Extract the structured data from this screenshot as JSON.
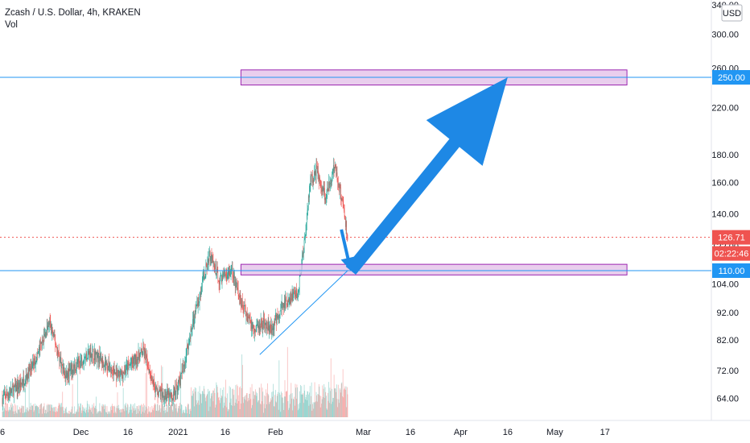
{
  "legend": {
    "title": "Zcash / U.S. Dollar, 4h, KRAKEN",
    "volume_label": "Vol"
  },
  "currency_label": "USD",
  "countdown": "02:22:46",
  "colors": {
    "up": "#26a69a",
    "down": "#ef5350",
    "zone_fill": "#e1bee7",
    "zone_stroke": "#9c27b0",
    "level_line": "#2196f3",
    "arrow": "#1e88e5",
    "price_line": "#ef5350"
  },
  "chart_data": {
    "type": "candlestick",
    "symbol": "ZECUSD",
    "timeframe": "4h",
    "exchange": "KRAKEN",
    "y_scale": "log",
    "ylim": [
      56,
      345
    ],
    "y_ticks": [
      340,
      300,
      260,
      220,
      180,
      160,
      140,
      122,
      104,
      92,
      82,
      72,
      64
    ],
    "y_tick_labels": [
      "340.00",
      "300.00",
      "260.00",
      "220.00",
      "180.00",
      "160.00",
      "140.00",
      "122.00",
      "104.00",
      "92.00",
      "82.00",
      "72.00",
      "64.00"
    ],
    "x_ticks": [
      {
        "label": "6",
        "date": "2020-11-06"
      },
      {
        "label": "Dec",
        "date": "2020-12-01"
      },
      {
        "label": "16",
        "date": "2020-12-16"
      },
      {
        "label": "2021",
        "date": "2021-01-01"
      },
      {
        "label": "16",
        "date": "2021-01-16"
      },
      {
        "label": "Feb",
        "date": "2021-02-01"
      },
      {
        "label": "Mar",
        "date": "2021-03-01"
      },
      {
        "label": "16",
        "date": "2021-03-16"
      },
      {
        "label": "Apr",
        "date": "2021-04-01"
      },
      {
        "label": "16",
        "date": "2021-04-16"
      },
      {
        "label": "May",
        "date": "2021-05-01"
      },
      {
        "label": "17",
        "date": "2021-05-17"
      }
    ],
    "price_keypoints": [
      {
        "date": "2020-11-06",
        "close": 64
      },
      {
        "date": "2020-11-12",
        "close": 68
      },
      {
        "date": "2020-11-16",
        "close": 74
      },
      {
        "date": "2020-11-21",
        "close": 88
      },
      {
        "date": "2020-11-26",
        "close": 70
      },
      {
        "date": "2020-11-30",
        "close": 74
      },
      {
        "date": "2020-12-04",
        "close": 78
      },
      {
        "date": "2020-12-08",
        "close": 75
      },
      {
        "date": "2020-12-13",
        "close": 70
      },
      {
        "date": "2020-12-17",
        "close": 74
      },
      {
        "date": "2020-12-21",
        "close": 78
      },
      {
        "date": "2020-12-25",
        "close": 66
      },
      {
        "date": "2020-12-30",
        "close": 64
      },
      {
        "date": "2021-01-02",
        "close": 70
      },
      {
        "date": "2021-01-05",
        "close": 85
      },
      {
        "date": "2021-01-09",
        "close": 106
      },
      {
        "date": "2021-01-11",
        "close": 118
      },
      {
        "date": "2021-01-14",
        "close": 106
      },
      {
        "date": "2021-01-18",
        "close": 110
      },
      {
        "date": "2021-01-21",
        "close": 96
      },
      {
        "date": "2021-01-25",
        "close": 86
      },
      {
        "date": "2021-01-28",
        "close": 88
      },
      {
        "date": "2021-01-31",
        "close": 86
      },
      {
        "date": "2021-02-03",
        "close": 94
      },
      {
        "date": "2021-02-06",
        "close": 98
      },
      {
        "date": "2021-02-08",
        "close": 100
      },
      {
        "date": "2021-02-10",
        "close": 120
      },
      {
        "date": "2021-02-12",
        "close": 160
      },
      {
        "date": "2021-02-14",
        "close": 168
      },
      {
        "date": "2021-02-17",
        "close": 150
      },
      {
        "date": "2021-02-20",
        "close": 172
      },
      {
        "date": "2021-02-23",
        "close": 140
      },
      {
        "date": "2021-02-24",
        "close": 126.71
      }
    ],
    "current_price": 126.71,
    "current_price_label": "126.71",
    "levels": [
      {
        "price": 250,
        "label": "250.00"
      },
      {
        "price": 110,
        "label": "110.00"
      }
    ],
    "zones": [
      {
        "from_date": "2021-01-21",
        "to_date": "2021-05-24",
        "low": 242,
        "high": 258
      },
      {
        "from_date": "2021-01-21",
        "to_date": "2021-05-24",
        "low": 108,
        "high": 113
      }
    ],
    "trendline": [
      {
        "date": "2021-01-27",
        "price": 77
      },
      {
        "date": "2021-02-24",
        "price": 110
      }
    ],
    "projection_arrows": [
      {
        "from": {
          "date": "2021-02-22",
          "price": 131
        },
        "to": {
          "date": "2021-02-25",
          "price": 110
        }
      },
      {
        "from": {
          "date": "2021-02-25",
          "price": 110
        },
        "to": {
          "date": "2021-04-16",
          "price": 250
        }
      }
    ]
  }
}
